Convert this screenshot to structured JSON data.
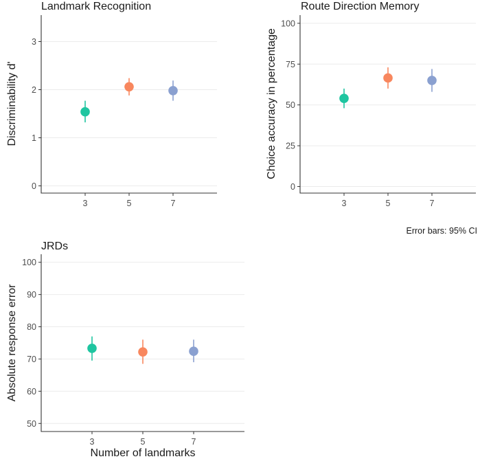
{
  "chart_data": [
    {
      "type": "scatter",
      "title": "Landmark Recognition",
      "xlabel": "",
      "ylabel": "Discriminability d'",
      "categories": [
        "3",
        "5",
        "7"
      ],
      "values": [
        1.54,
        2.06,
        1.98
      ],
      "ci_low": [
        1.32,
        1.88,
        1.77
      ],
      "ci_high": [
        1.77,
        2.24,
        2.19
      ],
      "colors": [
        "#1ec5a0",
        "#f8875e",
        "#8aa0d0"
      ],
      "ylim": [
        -0.15,
        3.55
      ],
      "yticks": [
        "0",
        "1",
        "2",
        "3"
      ],
      "grid": true
    },
    {
      "type": "scatter",
      "title": "Route Direction Memory",
      "xlabel": "",
      "ylabel": "Choice accuracy in percentage",
      "categories": [
        "3",
        "5",
        "7"
      ],
      "values": [
        54,
        66.5,
        65
      ],
      "ci_low": [
        48,
        60,
        58
      ],
      "ci_high": [
        60,
        73,
        72
      ],
      "colors": [
        "#1ec5a0",
        "#f8875e",
        "#8aa0d0"
      ],
      "ylim": [
        -4,
        105
      ],
      "yticks": [
        "0",
        "25",
        "50",
        "75",
        "100"
      ],
      "grid": true
    },
    {
      "type": "scatter",
      "title": "JRDs",
      "xlabel": "Number of landmarks",
      "ylabel": "Absolute response error",
      "categories": [
        "3",
        "5",
        "7"
      ],
      "values": [
        73.3,
        72.2,
        72.4
      ],
      "ci_low": [
        69.5,
        68.5,
        69
      ],
      "ci_high": [
        77,
        76,
        76
      ],
      "colors": [
        "#1ec5a0",
        "#f8875e",
        "#8aa0d0"
      ],
      "ylim": [
        47.5,
        102.5
      ],
      "yticks": [
        "50",
        "60",
        "70",
        "80",
        "90",
        "100"
      ],
      "grid": true
    }
  ],
  "note": "Error bars: 95% CI"
}
